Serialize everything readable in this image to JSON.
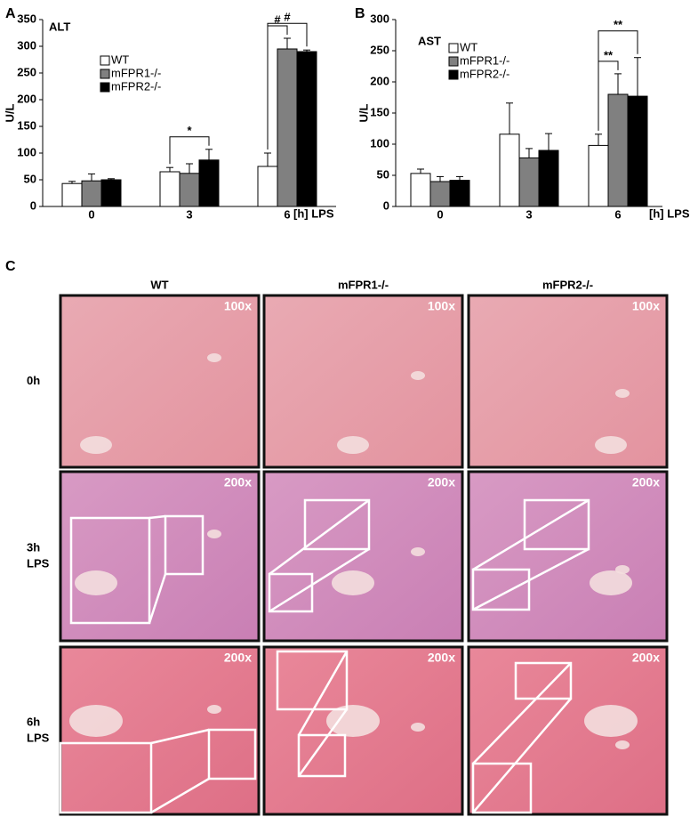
{
  "chart_data": [
    {
      "type": "bar",
      "panel": "A",
      "title": "ALT",
      "y_label": "U/L",
      "x_label": "[h] LPS",
      "categories": [
        "0",
        "3",
        "6"
      ],
      "series": [
        {
          "name": "WT",
          "color": "#ffffff",
          "values": [
            43,
            65,
            75
          ],
          "errors": [
            4,
            8,
            25
          ]
        },
        {
          "name": "mFPR1-/-",
          "color": "#808080",
          "values": [
            48,
            62,
            295
          ],
          "errors": [
            13,
            18,
            20
          ]
        },
        {
          "name": "mFPR2-/-",
          "color": "#000000",
          "values": [
            50,
            87,
            290
          ],
          "errors": [
            2,
            20,
            3
          ]
        }
      ],
      "ylim": [
        0,
        350
      ],
      "yticks": [
        0,
        50,
        100,
        150,
        200,
        250,
        300,
        350
      ],
      "annotations": [
        "*",
        "#",
        "#"
      ]
    },
    {
      "type": "bar",
      "panel": "B",
      "title": "AST",
      "y_label": "U/L",
      "x_label": "[h] LPS",
      "categories": [
        "0",
        "3",
        "6"
      ],
      "series": [
        {
          "name": "WT",
          "color": "#ffffff",
          "values": [
            53,
            116,
            98
          ],
          "errors": [
            7,
            50,
            18
          ]
        },
        {
          "name": "mFPR1-/-",
          "color": "#808080",
          "values": [
            40,
            78,
            180
          ],
          "errors": [
            8,
            15,
            33
          ]
        },
        {
          "name": "mFPR2-/-",
          "color": "#000000",
          "values": [
            42,
            90,
            177
          ],
          "errors": [
            6,
            27,
            62
          ]
        }
      ],
      "ylim": [
        0,
        300
      ],
      "yticks": [
        0,
        50,
        100,
        150,
        200,
        250,
        300
      ],
      "annotations": [
        "**",
        "**"
      ]
    }
  ],
  "histology": {
    "panel": "C",
    "columns": [
      "WT",
      "mFPR1-/-",
      "mFPR2-/-"
    ],
    "rows": [
      {
        "label": [
          "0h"
        ],
        "magnifications": [
          "100x",
          "100x",
          "100x"
        ]
      },
      {
        "label": [
          "3h",
          "LPS"
        ],
        "magnifications": [
          "200x",
          "200x",
          "200x"
        ]
      },
      {
        "label": [
          "6h",
          "LPS"
        ],
        "magnifications": [
          "200x",
          "200x",
          "200x"
        ]
      }
    ]
  }
}
